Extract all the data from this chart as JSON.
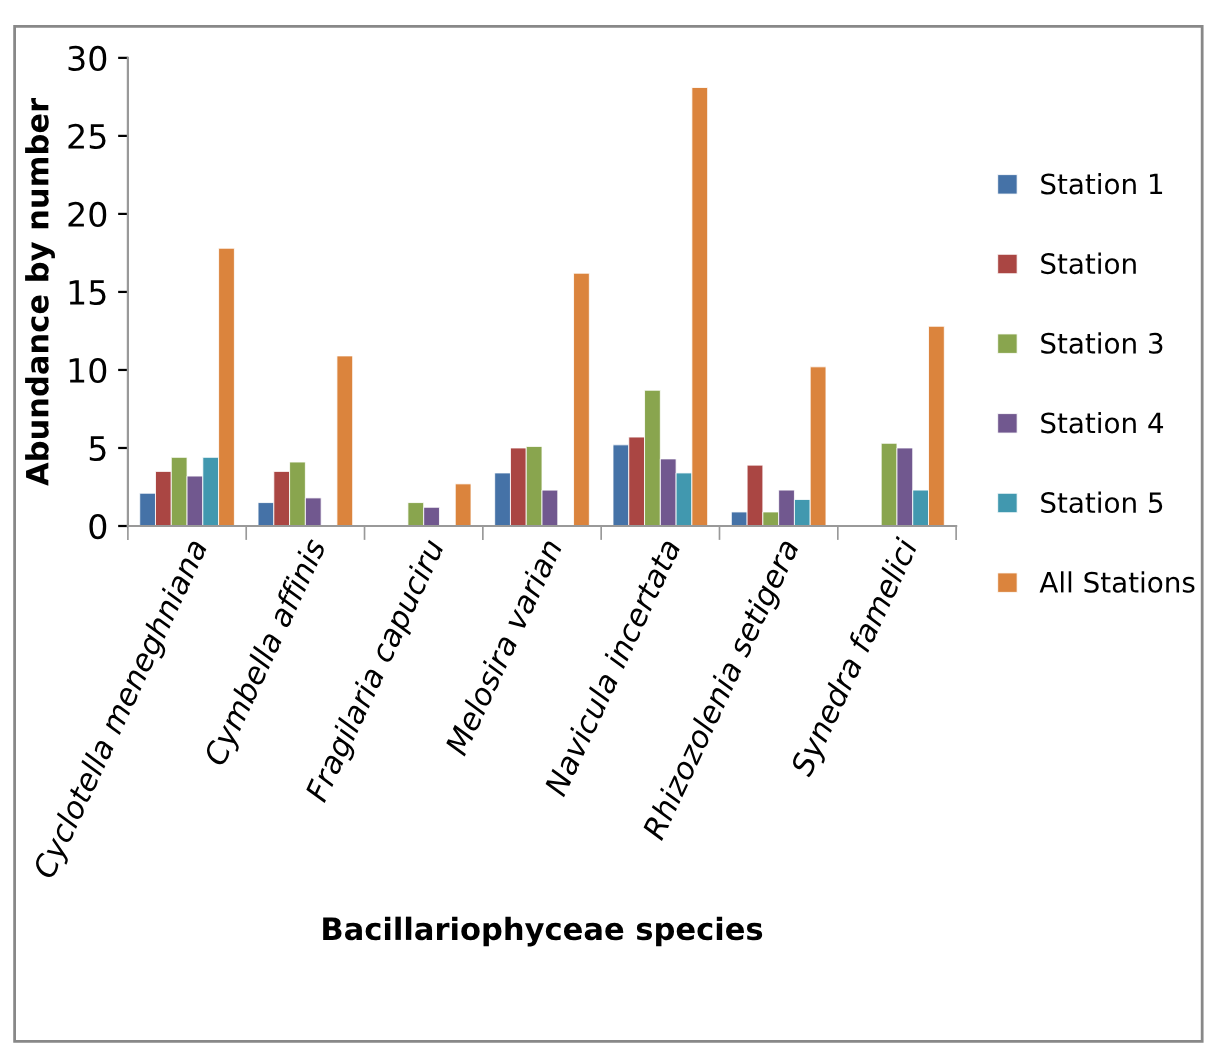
{
  "chart_data": {
    "type": "bar",
    "xlabel": "Bacillariophyceae species",
    "ylabel": "Abundance by number",
    "categories": [
      "Cyclotella meneghniana",
      "Cymbella affinis",
      "Fragilaria capuciru",
      "Melosira varian",
      "Navicula incertata",
      "Rhizozolenia setigera",
      "Synedra famelici"
    ],
    "series": [
      {
        "name": "Station 1",
        "color": "#4572a7",
        "values": [
          2.1,
          1.5,
          null,
          3.4,
          5.2,
          0.9,
          null
        ]
      },
      {
        "name": "Station",
        "color": "#aa4643",
        "values": [
          3.5,
          3.5,
          null,
          5.0,
          5.7,
          3.9,
          null
        ]
      },
      {
        "name": "Station 3",
        "color": "#89a54e",
        "values": [
          4.4,
          4.1,
          1.5,
          5.1,
          8.7,
          0.9,
          5.3
        ]
      },
      {
        "name": "Station 4",
        "color": "#71588f",
        "values": [
          3.2,
          1.8,
          1.2,
          2.3,
          4.3,
          2.3,
          5.0
        ]
      },
      {
        "name": "Station 5",
        "color": "#4198af",
        "values": [
          4.4,
          null,
          null,
          null,
          3.4,
          1.7,
          2.3
        ]
      },
      {
        "name": "All Stations",
        "color": "#db843d",
        "values": [
          17.8,
          10.9,
          2.7,
          16.2,
          28.1,
          10.2,
          12.8
        ]
      }
    ],
    "ylim": [
      0,
      30
    ],
    "yticks": [
      0,
      5,
      10,
      15,
      20,
      25,
      30
    ],
    "grid": false,
    "legend": "right"
  }
}
